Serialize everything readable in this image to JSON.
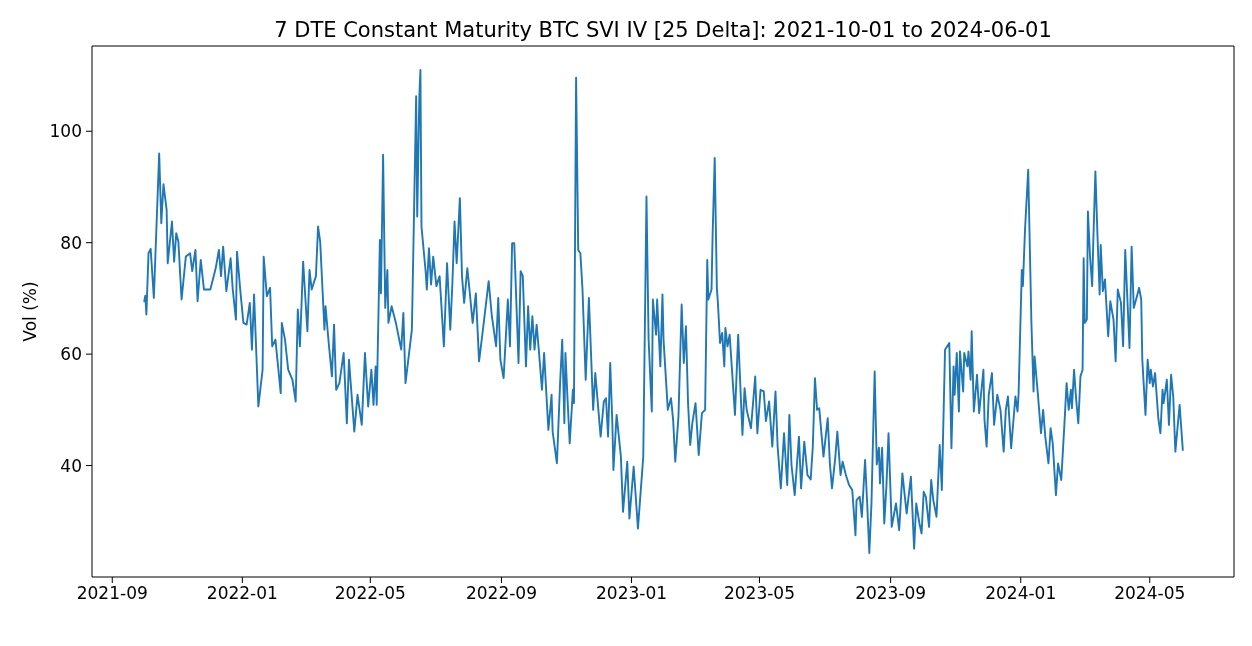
{
  "chart_data": {
    "type": "line",
    "title": "7 DTE Constant Maturity BTC SVI IV [25 Delta]: 2021-10-01 to 2024-06-01",
    "ylabel": "Vol (%)",
    "color": "#1f77b4",
    "x": [
      "2021-10-01",
      "2021-10-02",
      "2021-10-03",
      "2021-10-05",
      "2021-10-07",
      "2021-10-10",
      "2021-10-15",
      "2021-10-17",
      "2021-10-19",
      "2021-10-22",
      "2021-10-23",
      "2021-10-27",
      "2021-10-29",
      "2021-10-31",
      "2021-11-02",
      "2021-11-05",
      "2021-11-09",
      "2021-11-13",
      "2021-11-15",
      "2021-11-18",
      "2021-11-20",
      "2021-11-23",
      "2021-11-26",
      "2021-12-02",
      "2021-12-07",
      "2021-12-10",
      "2021-12-12",
      "2021-12-14",
      "2021-12-17",
      "2021-12-21",
      "2021-12-23",
      "2021-12-26",
      "2021-12-27",
      "2021-12-30",
      "2022-01-02",
      "2022-01-05",
      "2022-01-08",
      "2022-01-10",
      "2022-01-12",
      "2022-01-16",
      "2022-01-20",
      "2022-01-21",
      "2022-01-24",
      "2022-01-27",
      "2022-01-29",
      "2022-02-01",
      "2022-02-06",
      "2022-02-07",
      "2022-02-10",
      "2022-02-13",
      "2022-02-17",
      "2022-02-20",
      "2022-02-22",
      "2022-02-24",
      "2022-02-27",
      "2022-03-03",
      "2022-03-05",
      "2022-03-07",
      "2022-03-11",
      "2022-03-13",
      "2022-03-15",
      "2022-03-19",
      "2022-03-20",
      "2022-03-23",
      "2022-03-26",
      "2022-03-28",
      "2022-03-30",
      "2022-04-02",
      "2022-04-06",
      "2022-04-09",
      "2022-04-11",
      "2022-04-16",
      "2022-04-19",
      "2022-04-23",
      "2022-04-26",
      "2022-04-29",
      "2022-05-02",
      "2022-05-04",
      "2022-05-06",
      "2022-05-07",
      "2022-05-10",
      "2022-05-11",
      "2022-05-13",
      "2022-05-15",
      "2022-05-17",
      "2022-05-18",
      "2022-05-21",
      "2022-05-25",
      "2022-05-30",
      "2022-06-01",
      "2022-06-03",
      "2022-06-06",
      "2022-06-09",
      "2022-06-13",
      "2022-06-14",
      "2022-06-16",
      "2022-06-17",
      "2022-06-18",
      "2022-06-22",
      "2022-06-23",
      "2022-06-25",
      "2022-06-27",
      "2022-06-29",
      "2022-07-02",
      "2022-07-05",
      "2022-07-09",
      "2022-07-12",
      "2022-07-15",
      "2022-07-17",
      "2022-07-19",
      "2022-07-21",
      "2022-07-24",
      "2022-07-26",
      "2022-07-28",
      "2022-07-31",
      "2022-08-02",
      "2022-08-05",
      "2022-08-08",
      "2022-08-11",
      "2022-08-15",
      "2022-08-20",
      "2022-08-23",
      "2022-08-27",
      "2022-08-29",
      "2022-08-31",
      "2022-09-03",
      "2022-09-07",
      "2022-09-09",
      "2022-09-11",
      "2022-09-13",
      "2022-09-17",
      "2022-09-19",
      "2022-09-21",
      "2022-09-24",
      "2022-09-26",
      "2022-09-28",
      "2022-09-30",
      "2022-10-02",
      "2022-10-04",
      "2022-10-06",
      "2022-10-09",
      "2022-10-11",
      "2022-10-15",
      "2022-10-18",
      "2022-10-19",
      "2022-10-23",
      "2022-10-26",
      "2022-10-28",
      "2022-10-30",
      "2022-10-31",
      "2022-11-02",
      "2022-11-04",
      "2022-11-07",
      "2022-11-08",
      "2022-11-10",
      "2022-11-12",
      "2022-11-14",
      "2022-11-16",
      "2022-11-19",
      "2022-11-22",
      "2022-11-26",
      "2022-11-28",
      "2022-12-03",
      "2022-12-06",
      "2022-12-08",
      "2022-12-10",
      "2022-12-12",
      "2022-12-14",
      "2022-12-15",
      "2022-12-18",
      "2022-12-22",
      "2022-12-24",
      "2022-12-28",
      "2022-12-30",
      "2023-01-03",
      "2023-01-07",
      "2023-01-12",
      "2023-01-15",
      "2023-01-17",
      "2023-01-20",
      "2023-01-21",
      "2023-01-24",
      "2023-01-25",
      "2023-01-28",
      "2023-01-30",
      "2023-01-31",
      "2023-02-04",
      "2023-02-07",
      "2023-02-09",
      "2023-02-11",
      "2023-02-14",
      "2023-02-17",
      "2023-02-19",
      "2023-02-21",
      "2023-02-23",
      "2023-02-25",
      "2023-02-27",
      "2023-03-02",
      "2023-03-05",
      "2023-03-08",
      "2023-03-11",
      "2023-03-13",
      "2023-03-14",
      "2023-03-17",
      "2023-03-18",
      "2023-03-20",
      "2023-03-22",
      "2023-03-23",
      "2023-03-25",
      "2023-03-27",
      "2023-03-29",
      "2023-03-30",
      "2023-04-01",
      "2023-04-03",
      "2023-04-08",
      "2023-04-11",
      "2023-04-15",
      "2023-04-17",
      "2023-04-19",
      "2023-04-23",
      "2023-04-27",
      "2023-04-29",
      "2023-05-02",
      "2023-05-05",
      "2023-05-07",
      "2023-05-10",
      "2023-05-13",
      "2023-05-16",
      "2023-05-18",
      "2023-05-21",
      "2023-05-24",
      "2023-05-27",
      "2023-05-29",
      "2023-05-31",
      "2023-06-03",
      "2023-06-07",
      "2023-06-09",
      "2023-06-12",
      "2023-06-15",
      "2023-06-18",
      "2023-06-20",
      "2023-06-22",
      "2023-06-24",
      "2023-06-26",
      "2023-06-30",
      "2023-07-04",
      "2023-07-06",
      "2023-07-08",
      "2023-07-11",
      "2023-07-13",
      "2023-07-16",
      "2023-07-18",
      "2023-07-21",
      "2023-07-24",
      "2023-07-27",
      "2023-07-30",
      "2023-07-31",
      "2023-08-03",
      "2023-08-05",
      "2023-08-08",
      "2023-08-10",
      "2023-08-12",
      "2023-08-14",
      "2023-08-17",
      "2023-08-19",
      "2023-08-21",
      "2023-08-22",
      "2023-08-24",
      "2023-08-26",
      "2023-08-28",
      "2023-08-30",
      "2023-09-02",
      "2023-09-06",
      "2023-09-09",
      "2023-09-12",
      "2023-09-16",
      "2023-09-20",
      "2023-09-23",
      "2023-09-25",
      "2023-09-28",
      "2023-09-30",
      "2023-10-02",
      "2023-10-04",
      "2023-10-07",
      "2023-10-09",
      "2023-10-11",
      "2023-10-14",
      "2023-10-17",
      "2023-10-19",
      "2023-10-22",
      "2023-10-26",
      "2023-10-28",
      "2023-10-30",
      "2023-10-31",
      "2023-11-02",
      "2023-11-04",
      "2023-11-05",
      "2023-11-08",
      "2023-11-09",
      "2023-11-12",
      "2023-11-13",
      "2023-11-15",
      "2023-11-16",
      "2023-11-18",
      "2023-11-21",
      "2023-11-23",
      "2023-11-27",
      "2023-11-28",
      "2023-11-30",
      "2023-12-02",
      "2023-12-05",
      "2023-12-07",
      "2023-12-10",
      "2023-12-13",
      "2023-12-16",
      "2023-12-18",
      "2023-12-20",
      "2023-12-23",
      "2023-12-27",
      "2023-12-29",
      "2023-12-30",
      "2024-01-02",
      "2024-01-03",
      "2024-01-05",
      "2024-01-08",
      "2024-01-11",
      "2024-01-13",
      "2024-01-14",
      "2024-01-17",
      "2024-01-20",
      "2024-01-22",
      "2024-01-24",
      "2024-01-27",
      "2024-01-29",
      "2024-01-31",
      "2024-02-03",
      "2024-02-05",
      "2024-02-08",
      "2024-02-11",
      "2024-02-13",
      "2024-02-15",
      "2024-02-17",
      "2024-02-18",
      "2024-02-20",
      "2024-02-22",
      "2024-02-24",
      "2024-02-26",
      "2024-02-28",
      "2024-02-29",
      "2024-03-01",
      "2024-03-03",
      "2024-03-04",
      "2024-03-06",
      "2024-03-08",
      "2024-03-09",
      "2024-03-11",
      "2024-03-13",
      "2024-03-15",
      "2024-03-16",
      "2024-03-18",
      "2024-03-20",
      "2024-03-23",
      "2024-03-25",
      "2024-03-28",
      "2024-03-30",
      "2024-04-01",
      "2024-04-04",
      "2024-04-06",
      "2024-04-08",
      "2024-04-12",
      "2024-04-14",
      "2024-04-16",
      "2024-04-19",
      "2024-04-21",
      "2024-04-23",
      "2024-04-24",
      "2024-04-27",
      "2024-04-29",
      "2024-05-01",
      "2024-05-02",
      "2024-05-04",
      "2024-05-06",
      "2024-05-09",
      "2024-05-11",
      "2024-05-13",
      "2024-05-14",
      "2024-05-17",
      "2024-05-19",
      "2024-05-21",
      "2024-05-23",
      "2024-05-25",
      "2024-05-29",
      "2024-06-01"
    ],
    "values": [
      69.5,
      70.5,
      67.1,
      78.1,
      78.9,
      70.1,
      96.0,
      83.5,
      90.5,
      85.9,
      76.3,
      83.8,
      76.6,
      81.7,
      80.2,
      69.8,
      77.5,
      78.1,
      74.9,
      78.7,
      69.5,
      76.9,
      71.6,
      71.6,
      75.4,
      78.7,
      74.0,
      79.3,
      71.3,
      77.2,
      71.6,
      66.2,
      78.4,
      71.6,
      65.6,
      65.3,
      69.2,
      60.8,
      70.7,
      50.6,
      57.2,
      77.5,
      70.4,
      71.9,
      61.4,
      62.6,
      53.0,
      65.6,
      62.6,
      57.2,
      55.4,
      51.5,
      68.0,
      61.4,
      76.6,
      64.1,
      75.1,
      71.6,
      74.0,
      82.9,
      80.2,
      64.4,
      68.6,
      62.0,
      56.0,
      65.3,
      53.6,
      54.8,
      60.2,
      47.6,
      59.0,
      46.1,
      52.7,
      47.3,
      60.2,
      50.6,
      57.2,
      50.9,
      57.8,
      50.9,
      80.5,
      70.9,
      95.8,
      68.3,
      75.1,
      65.6,
      68.6,
      65.6,
      60.8,
      67.4,
      54.8,
      59.6,
      64.4,
      106.3,
      84.7,
      106.3,
      111.0,
      82.9,
      74.6,
      71.6,
      79.0,
      72.5,
      77.5,
      72.2,
      74.0,
      61.4,
      76.3,
      64.4,
      72.8,
      83.8,
      76.3,
      88.0,
      74.0,
      69.2,
      75.4,
      71.6,
      65.6,
      70.9,
      58.7,
      65.0,
      73.1,
      66.8,
      61.4,
      70.1,
      59.0,
      55.7,
      69.8,
      61.4,
      79.9,
      79.9,
      58.4,
      74.9,
      74.0,
      57.8,
      68.6,
      60.8,
      66.8,
      60.8,
      65.3,
      60.8,
      53.6,
      60.2,
      46.4,
      52.7,
      46.1,
      40.4,
      54.8,
      62.6,
      47.6,
      60.2,
      51.8,
      44.0,
      53.6,
      51.2,
      109.6,
      78.7,
      78.1,
      71.6,
      55.4,
      70.1,
      50.0,
      56.6,
      45.2,
      51.5,
      52.1,
      45.2,
      58.4,
      47.6,
      39.2,
      49.1,
      41.6,
      31.7,
      40.7,
      30.5,
      39.8,
      28.7,
      41.6,
      88.3,
      62.6,
      49.7,
      69.8,
      63.5,
      69.8,
      57.8,
      70.7,
      62.6,
      50.0,
      52.1,
      48.2,
      40.7,
      48.8,
      68.9,
      58.4,
      65.0,
      51.2,
      43.7,
      47.6,
      51.2,
      41.9,
      49.4,
      50.0,
      76.9,
      69.8,
      71.6,
      81.1,
      95.2,
      71.9,
      69.2,
      62.0,
      63.8,
      57.8,
      64.7,
      61.4,
      63.5,
      49.1,
      63.5,
      45.5,
      53.9,
      50.0,
      46.7,
      56.0,
      45.8,
      53.6,
      53.3,
      48.0,
      51.5,
      43.4,
      53.3,
      43.4,
      35.9,
      45.8,
      36.5,
      49.1,
      40.1,
      34.7,
      45.2,
      35.9,
      44.3,
      38.3,
      37.5,
      43.4,
      55.7,
      50.0,
      50.3,
      41.6,
      48.5,
      40.4,
      35.9,
      41.3,
      46.1,
      38.3,
      40.7,
      38.3,
      36.5,
      35.6,
      27.5,
      33.8,
      34.4,
      30.8,
      41.0,
      33.2,
      24.3,
      33.2,
      56.9,
      40.2,
      43.2,
      36.8,
      43.2,
      29.6,
      36.2,
      45.8,
      29.0,
      33.2,
      28.4,
      38.6,
      31.4,
      38.0,
      25.1,
      33.2,
      29.6,
      27.8,
      35.3,
      34.4,
      29.0,
      37.4,
      33.8,
      30.8,
      43.7,
      35.6,
      60.8,
      62.0,
      43.1,
      57.8,
      52.7,
      60.2,
      49.7,
      60.5,
      53.3,
      60.2,
      57.8,
      60.5,
      55.4,
      64.1,
      49.7,
      56.3,
      49.4,
      57.2,
      48.2,
      43.4,
      52.7,
      56.6,
      47.3,
      52.7,
      50.0,
      42.5,
      50.0,
      52.4,
      43.1,
      52.4,
      49.7,
      53.0,
      75.1,
      72.2,
      82.3,
      93.1,
      65.6,
      53.3,
      59.6,
      53.0,
      45.8,
      50.0,
      45.2,
      40.4,
      46.7,
      44.0,
      34.7,
      40.4,
      37.4,
      47.6,
      54.8,
      50.0,
      53.6,
      50.3,
      57.2,
      51.8,
      47.6,
      56.0,
      57.2,
      77.2,
      65.6,
      66.2,
      85.6,
      77.5,
      72.2,
      79.9,
      92.8,
      81.1,
      70.7,
      79.6,
      71.3,
      73.4,
      63.2,
      69.5,
      66.2,
      58.7,
      71.6,
      69.2,
      61.4,
      78.7,
      61.1,
      79.3,
      68.3,
      70.4,
      71.9,
      69.8,
      59.0,
      49.1,
      59.0,
      54.8,
      57.2,
      54.2,
      56.6,
      48.5,
      45.8,
      53.6,
      51.2,
      55.4,
      47.3,
      56.3,
      52.4,
      42.5,
      50.9,
      42.8
    ],
    "xlim": [
      "2021-08-13",
      "2024-07-19"
    ],
    "xticks": [
      "2021-09",
      "2022-01",
      "2022-05",
      "2022-09",
      "2023-01",
      "2023-05",
      "2023-09",
      "2024-01",
      "2024-05"
    ],
    "ylim": [
      20,
      115.3
    ],
    "yticks": [
      40,
      60,
      80,
      100
    ]
  }
}
